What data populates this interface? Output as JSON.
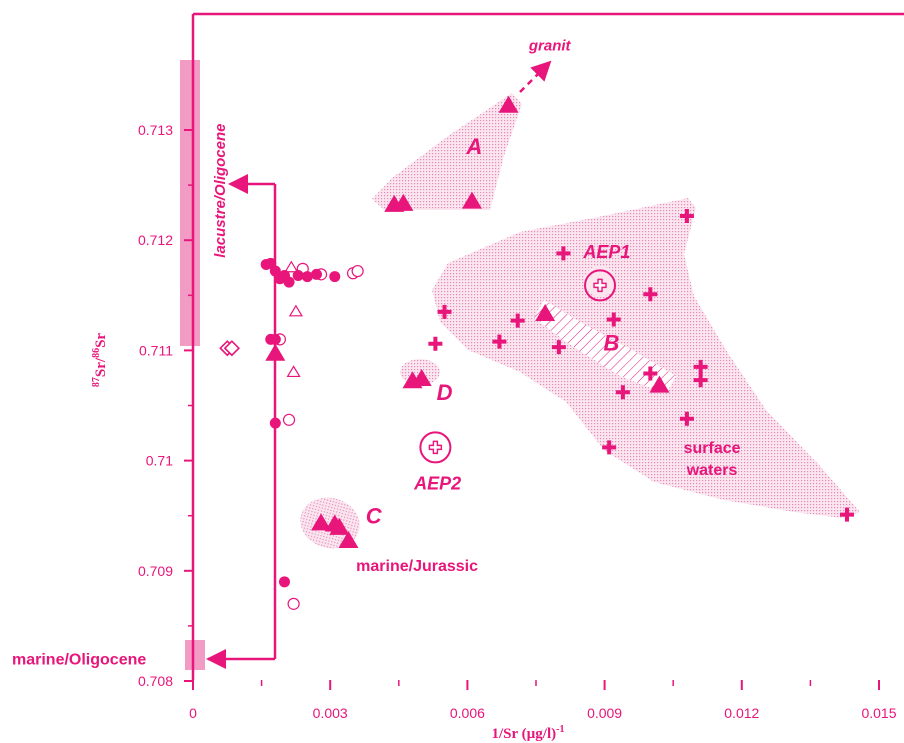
{
  "colors": {
    "primary": "#e8157a",
    "fill_light": "#f7d5e6",
    "bar": "#f29bc4",
    "background": "#ffffff"
  },
  "chart_data": {
    "type": "scatter",
    "title": "",
    "xlabel": "1/Sr (µg/l)",
    "xlabel_sup": "-1",
    "ylabel_sup87": "87",
    "ylabel_mid": "Sr/",
    "ylabel_sup86": "86",
    "ylabel_end": "Sr",
    "xlim": [
      0,
      0.0155
    ],
    "ylim": [
      0.7079,
      0.71365
    ],
    "x_ticks": [
      0,
      0.003,
      0.006,
      0.009,
      0.012,
      0.015
    ],
    "x_tick_labels": [
      "0",
      "0.003",
      "0.006",
      "0.009",
      "0.012",
      "0.015"
    ],
    "y_ticks": [
      0.708,
      0.709,
      0.71,
      0.711,
      0.712,
      0.713
    ],
    "y_tick_labels": [
      "0.708",
      "0.709",
      "0.71",
      "0.711",
      "0.712",
      "0.713"
    ],
    "grid": false,
    "legend": "none",
    "groups": [
      {
        "label": "A",
        "points": [
          [
            0.0069,
            0.71322
          ],
          [
            0.0061,
            0.71235
          ],
          [
            0.0044,
            0.71232
          ],
          [
            0.0046,
            0.71233
          ]
        ]
      },
      {
        "label": "B",
        "points": [
          [
            0.0077,
            0.71133
          ],
          [
            0.0102,
            0.71068
          ]
        ]
      },
      {
        "label": "C",
        "points": [
          [
            0.0028,
            0.70943
          ],
          [
            0.0031,
            0.70942
          ],
          [
            0.0034,
            0.70927
          ],
          [
            0.0032,
            0.70939
          ]
        ]
      },
      {
        "label": "D",
        "points": [
          [
            0.0048,
            0.71072
          ],
          [
            0.005,
            0.71074
          ]
        ]
      },
      {
        "label": "AEP1",
        "points": [
          [
            0.0089,
            0.71159
          ]
        ]
      },
      {
        "label": "AEP2",
        "points": [
          [
            0.0053,
            0.71012
          ]
        ]
      }
    ],
    "series": [
      {
        "name": "",
        "marker": "filled-triangle",
        "points": [
          [
            0.0069,
            0.71322
          ],
          [
            0.0061,
            0.71235
          ],
          [
            0.0044,
            0.71232
          ],
          [
            0.0046,
            0.71233
          ],
          [
            0.0077,
            0.71133
          ],
          [
            0.0102,
            0.71068
          ],
          [
            0.0048,
            0.71072
          ],
          [
            0.005,
            0.71074
          ],
          [
            0.0028,
            0.70943
          ],
          [
            0.0031,
            0.70942
          ],
          [
            0.0034,
            0.70927
          ],
          [
            0.0032,
            0.70939
          ],
          [
            0.0018,
            0.71097
          ]
        ]
      },
      {
        "name": "",
        "marker": "open-triangle",
        "points": [
          [
            0.00215,
            0.71175
          ],
          [
            0.00225,
            0.71135
          ],
          [
            0.0022,
            0.7108
          ]
        ]
      },
      {
        "name": "",
        "marker": "filled-circle",
        "points": [
          [
            0.0016,
            0.71178
          ],
          [
            0.0017,
            0.71179
          ],
          [
            0.0018,
            0.71172
          ],
          [
            0.0019,
            0.71165
          ],
          [
            0.002,
            0.71168
          ],
          [
            0.0021,
            0.71162
          ],
          [
            0.0023,
            0.71168
          ],
          [
            0.0025,
            0.71167
          ],
          [
            0.0027,
            0.71169
          ],
          [
            0.0031,
            0.71167
          ],
          [
            0.0017,
            0.7111
          ],
          [
            0.0018,
            0.7111
          ],
          [
            0.0018,
            0.71034
          ],
          [
            0.002,
            0.7089
          ]
        ]
      },
      {
        "name": "",
        "marker": "open-circle",
        "points": [
          [
            0.0024,
            0.71174
          ],
          [
            0.0028,
            0.71169
          ],
          [
            0.0035,
            0.7117
          ],
          [
            0.0036,
            0.71172
          ],
          [
            0.0021,
            0.71037
          ],
          [
            0.0022,
            0.7087
          ],
          [
            0.0019,
            0.7111
          ]
        ]
      },
      {
        "name": "",
        "marker": "open-diamond",
        "points": [
          [
            0.00075,
            0.71102
          ],
          [
            0.00085,
            0.71102
          ]
        ]
      },
      {
        "name": "",
        "marker": "cross",
        "points": [
          [
            0.0108,
            0.71222
          ],
          [
            0.0081,
            0.71188
          ],
          [
            0.01,
            0.71151
          ],
          [
            0.0055,
            0.71135
          ],
          [
            0.0092,
            0.71128
          ],
          [
            0.0071,
            0.71127
          ],
          [
            0.0053,
            0.71106
          ],
          [
            0.0067,
            0.71108
          ],
          [
            0.008,
            0.71103
          ],
          [
            0.0111,
            0.71085
          ],
          [
            0.0111,
            0.71073
          ],
          [
            0.01,
            0.71079
          ],
          [
            0.0094,
            0.71062
          ],
          [
            0.0108,
            0.71038
          ],
          [
            0.0091,
            0.71012
          ],
          [
            0.0143,
            0.70951
          ]
        ]
      },
      {
        "name": "",
        "marker": "circled-cross",
        "points": [
          [
            0.0089,
            0.71159
          ],
          [
            0.0053,
            0.71012
          ]
        ]
      }
    ],
    "annotations": [
      {
        "text": "granit",
        "style": "bold-italic",
        "x": 0.0078,
        "y": 0.71372
      },
      {
        "text": "A",
        "style": "bold-italic-large",
        "x": 0.00615,
        "y": 0.71278
      },
      {
        "text": "B",
        "style": "bold-italic-large",
        "x": 0.00915,
        "y": 0.711
      },
      {
        "text": "C",
        "style": "bold-italic-large",
        "x": 0.00395,
        "y": 0.70943
      },
      {
        "text": "D",
        "style": "bold-italic-large",
        "x": 0.0055,
        "y": 0.71055
      },
      {
        "text": "AEP1",
        "style": "bold-italic",
        "x": 0.00905,
        "y": 0.71184
      },
      {
        "text": "AEP2",
        "style": "bold-italic",
        "x": 0.00535,
        "y": 0.70974
      },
      {
        "text": "surface",
        "style": "bold",
        "x": 0.01135,
        "y": 0.71007
      },
      {
        "text": "waters",
        "style": "bold",
        "x": 0.01135,
        "y": 0.70987
      },
      {
        "text": "marine/Jurassic",
        "style": "bold",
        "x": 0.0049,
        "y": 0.709
      },
      {
        "text": "lacustre/Oligocene",
        "style": "bold-italic-vertical",
        "x": 0.0007,
        "y": 0.71245
      },
      {
        "text": "marine/Oligocene",
        "style": "bold",
        "x": -0.0025,
        "y": 0.70815
      }
    ]
  }
}
